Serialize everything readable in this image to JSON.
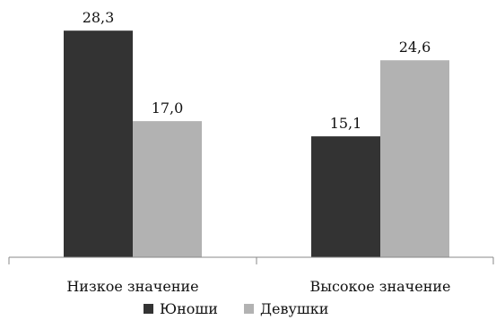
{
  "chart_data": {
    "type": "bar",
    "categories": [
      "Низкое значение",
      "Высокое значение"
    ],
    "series": [
      {
        "name": "Юноши",
        "values": [
          28.3,
          15.1
        ],
        "value_labels": [
          "28,3",
          "15,1"
        ],
        "color": "#333333"
      },
      {
        "name": "Девушки",
        "values": [
          17.0,
          24.6
        ],
        "value_labels": [
          "17,0",
          "24,6"
        ],
        "color": "#b2b2b2"
      }
    ],
    "title": "",
    "xlabel": "",
    "ylabel": "",
    "ylim": [
      0,
      30
    ],
    "grid": false,
    "legend_position": "bottom"
  }
}
